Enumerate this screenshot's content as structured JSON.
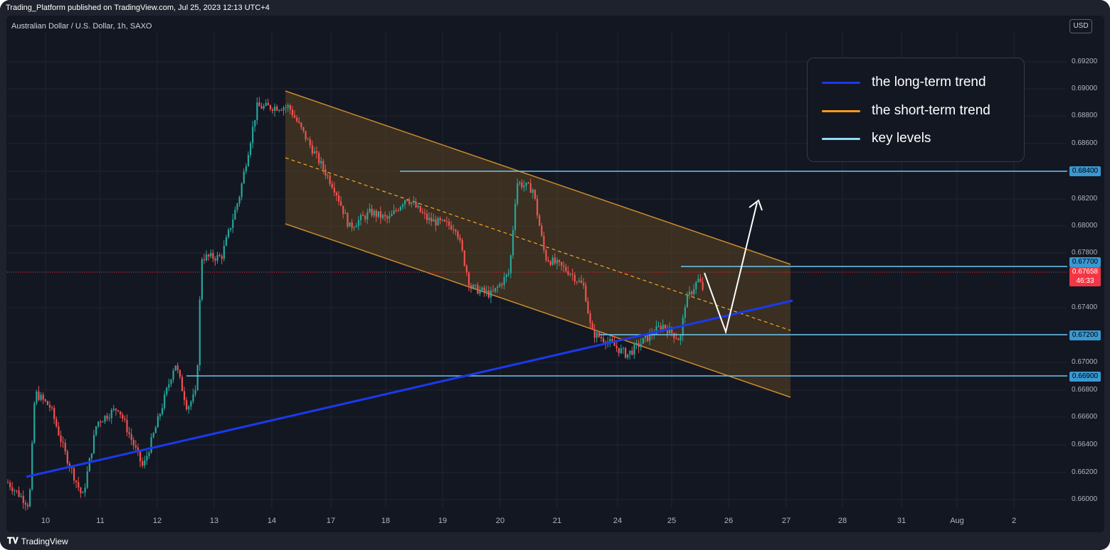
{
  "header": {
    "publisher": "Trading_Platform published on TradingView.com, Jul 25, 2023 12:13 UTC+4"
  },
  "symbol": {
    "title": "Australian Dollar / U.S. Dollar, 1h, SAXO"
  },
  "currency_button": {
    "label": "USD"
  },
  "price_axis": {
    "ticks": [
      "0.69200",
      "0.69000",
      "0.68800",
      "0.68600",
      "0.68400",
      "0.68200",
      "0.68000",
      "0.67800",
      "0.67400",
      "0.67000",
      "0.66800",
      "0.66600",
      "0.66400",
      "0.66200",
      "0.66000"
    ]
  },
  "time_axis": {
    "ticks": [
      "10",
      "11",
      "12",
      "13",
      "14",
      "17",
      "18",
      "19",
      "20",
      "21",
      "24",
      "25",
      "26",
      "27",
      "28",
      "31",
      "Aug",
      "2"
    ]
  },
  "key_levels": [
    {
      "label": "0.68400"
    },
    {
      "label": "0.67700"
    },
    {
      "label": "0.67200"
    },
    {
      "label": "0.66900"
    }
  ],
  "current_price": {
    "value": "0.67658",
    "countdown": "46:33",
    "color": "#f23645"
  },
  "legend": {
    "items": [
      {
        "label": "the long-term trend",
        "color": "#1a3aec"
      },
      {
        "label": "the short-term trend",
        "color": "#f59b1a"
      },
      {
        "label": "key levels",
        "color": "#8fdcf5"
      }
    ]
  },
  "colors": {
    "up_candle": "#26a69a",
    "down_candle": "#ef5350",
    "channel_fill": "#5b4420",
    "channel_border": "#c88a2c",
    "long_trend": "#1a3aec",
    "key_level": "#6ec6f0",
    "background": "#131722"
  },
  "footer": {
    "brand": "TradingView"
  }
}
